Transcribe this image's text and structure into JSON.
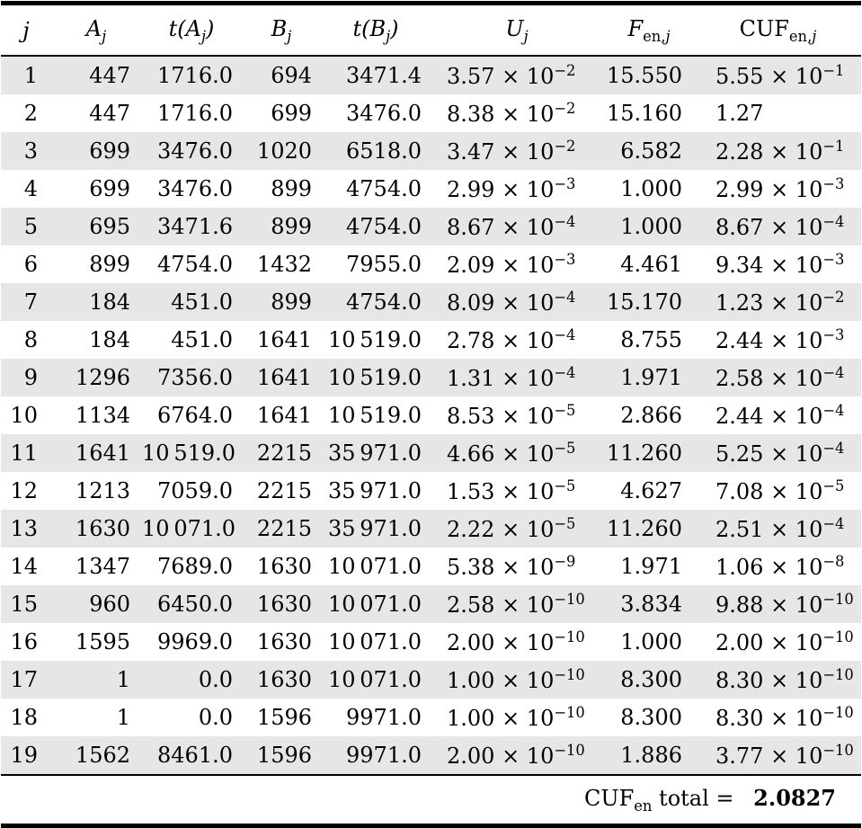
{
  "chart_data": {
    "type": "table",
    "columns": [
      "j",
      "A_j",
      "t(A_j)",
      "B_j",
      "t(B_j)",
      "U_j",
      "F_en,j",
      "CUF_en,j"
    ],
    "rows": [
      [
        "1",
        "447",
        "1716.0",
        "694",
        "3471.4",
        "3.57 × 10^−2",
        "15.550",
        "5.55 × 10^−1"
      ],
      [
        "2",
        "447",
        "1716.0",
        "699",
        "3476.0",
        "8.38 × 10^−2",
        "15.160",
        "1.27"
      ],
      [
        "3",
        "699",
        "3476.0",
        "1020",
        "6518.0",
        "3.47 × 10^−2",
        "6.582",
        "2.28 × 10^−1"
      ],
      [
        "4",
        "699",
        "3476.0",
        "899",
        "4754.0",
        "2.99 × 10^−3",
        "1.000",
        "2.99 × 10^−3"
      ],
      [
        "5",
        "695",
        "3471.6",
        "899",
        "4754.0",
        "8.67 × 10^−4",
        "1.000",
        "8.67 × 10^−4"
      ],
      [
        "6",
        "899",
        "4754.0",
        "1432",
        "7955.0",
        "2.09 × 10^−3",
        "4.461",
        "9.34 × 10^−3"
      ],
      [
        "7",
        "184",
        "451.0",
        "899",
        "4754.0",
        "8.09 × 10^−4",
        "15.170",
        "1.23 × 10^−2"
      ],
      [
        "8",
        "184",
        "451.0",
        "1641",
        "10 519.0",
        "2.78 × 10^−4",
        "8.755",
        "2.44 × 10^−3"
      ],
      [
        "9",
        "1296",
        "7356.0",
        "1641",
        "10 519.0",
        "1.31 × 10^−4",
        "1.971",
        "2.58 × 10^−4"
      ],
      [
        "10",
        "1134",
        "6764.0",
        "1641",
        "10 519.0",
        "8.53 × 10^−5",
        "2.866",
        "2.44 × 10^−4"
      ],
      [
        "11",
        "1641",
        "10 519.0",
        "2215",
        "35 971.0",
        "4.66 × 10^−5",
        "11.260",
        "5.25 × 10^−4"
      ],
      [
        "12",
        "1213",
        "7059.0",
        "2215",
        "35 971.0",
        "1.53 × 10^−5",
        "4.627",
        "7.08 × 10^−5"
      ],
      [
        "13",
        "1630",
        "10 071.0",
        "2215",
        "35 971.0",
        "2.22 × 10^−5",
        "11.260",
        "2.51 × 10^−4"
      ],
      [
        "14",
        "1347",
        "7689.0",
        "1630",
        "10 071.0",
        "5.38 × 10^−9",
        "1.971",
        "1.06 × 10^−8"
      ],
      [
        "15",
        "960",
        "6450.0",
        "1630",
        "10 071.0",
        "2.58 × 10^−10",
        "3.834",
        "9.88 × 10^−10"
      ],
      [
        "16",
        "1595",
        "9969.0",
        "1630",
        "10 071.0",
        "2.00 × 10^−10",
        "1.000",
        "2.00 × 10^−10"
      ],
      [
        "17",
        "1",
        "0.0",
        "1630",
        "10 071.0",
        "1.00 × 10^−10",
        "8.300",
        "8.30 × 10^−10"
      ],
      [
        "18",
        "1",
        "0.0",
        "1596",
        "9971.0",
        "1.00 × 10^−10",
        "8.300",
        "8.30 × 10^−10"
      ],
      [
        "19",
        "1562",
        "8461.0",
        "1596",
        "9971.0",
        "2.00 × 10^−10",
        "1.886",
        "3.77 × 10^−10"
      ]
    ],
    "total_label": "CUF_en total =",
    "total_value": "2.0827"
  },
  "table": {
    "header": [
      {
        "id": "j",
        "rm": "",
        "it": "j",
        "sub_rm": "",
        "sub_it": "",
        "post": ""
      },
      {
        "id": "a-j",
        "rm": "",
        "it": "A",
        "sub_rm": "",
        "sub_it": "j",
        "post": ""
      },
      {
        "id": "t-a-j",
        "rm": "",
        "it": "t(A",
        "sub_rm": "",
        "sub_it": "j",
        "post": ")"
      },
      {
        "id": "b-j",
        "rm": "",
        "it": "B",
        "sub_rm": "",
        "sub_it": "j",
        "post": ""
      },
      {
        "id": "t-b-j",
        "rm": "",
        "it": "t(B",
        "sub_rm": "",
        "sub_it": "j",
        "post": ")"
      },
      {
        "id": "u-j",
        "rm": "",
        "it": "U",
        "sub_rm": "",
        "sub_it": "j",
        "post": ""
      },
      {
        "id": "f-en-j",
        "rm": "",
        "it": "F",
        "sub_rm": "en,",
        "sub_it": "j",
        "post": ""
      },
      {
        "id": "cuf-en-j",
        "rm": "CUF",
        "it": "",
        "sub_rm": "en,",
        "sub_it": "j",
        "post": ""
      }
    ],
    "footer": {
      "label_rm": "CUF",
      "label_sub": "en",
      "label_rest": " total = ",
      "value": "2.0827"
    },
    "style": {
      "stripe_color": "#e6e6e6",
      "rule_color": "#000000",
      "text_color": "#000000"
    }
  }
}
